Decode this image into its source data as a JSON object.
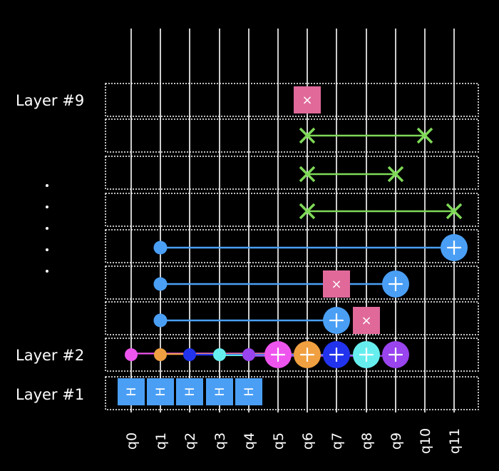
{
  "layers": {
    "top_label": "Layer #9",
    "middle_label": "Layer #2",
    "bottom_label": "Layer #1",
    "rows": 9
  },
  "qubits": [
    "q0",
    "q1",
    "q2",
    "q3",
    "q4",
    "q5",
    "q6",
    "q7",
    "q8",
    "q9",
    "q10",
    "q11"
  ],
  "gate_symbols": {
    "hadamard": "H",
    "swap_marker": "×",
    "target": "+"
  },
  "colors": {
    "background": "#000000",
    "wire": "#ffffff",
    "layer_border": "#ffffff",
    "hadamard": "#4a9ff5",
    "cnot_blue": "#4a9ff5",
    "swap_pink": "#e0699a",
    "swap_green": "#7ed957",
    "q0_magenta": "#ee55ee",
    "q1_orange": "#f0a040",
    "q2_blue": "#2233ee",
    "q3_cyan": "#66eeee",
    "q4_purple": "#9944ee"
  },
  "gates": {
    "layer1_hadamard": [
      0,
      1,
      2,
      3,
      4
    ],
    "layer2_cnots": [
      {
        "control": 0,
        "target": 5,
        "color": "q0_magenta"
      },
      {
        "control": 1,
        "target": 6,
        "color": "q1_orange"
      },
      {
        "control": 2,
        "target": 7,
        "color": "q2_blue"
      },
      {
        "control": 3,
        "target": 8,
        "color": "q3_cyan"
      },
      {
        "control": 4,
        "target": 9,
        "color": "q4_purple"
      }
    ],
    "upper_cnots": [
      {
        "row": 3,
        "control": 1,
        "target": 7
      },
      {
        "row": 4,
        "control": 1,
        "target": 9
      },
      {
        "row": 5,
        "control": 1,
        "target": 11
      }
    ],
    "single_swaps": [
      {
        "row": 3,
        "qubit": 8
      },
      {
        "row": 4,
        "qubit": 7
      },
      {
        "row": 9,
        "qubit": 6
      }
    ],
    "two_qubit_swaps": [
      {
        "row": 6,
        "a": 6,
        "b": 11
      },
      {
        "row": 7,
        "a": 6,
        "b": 9
      },
      {
        "row": 8,
        "a": 6,
        "b": 10
      }
    ]
  }
}
